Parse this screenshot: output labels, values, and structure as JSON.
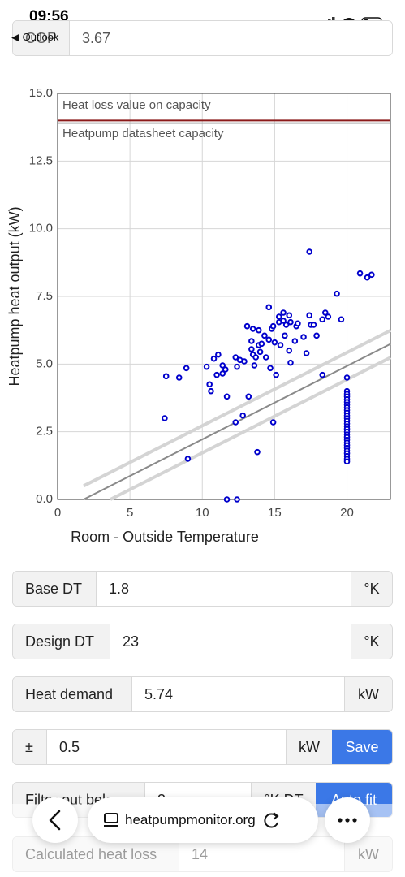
{
  "status_bar": {
    "time": "09:56",
    "back_app": "◀ Outlook"
  },
  "top_field": {
    "label": "COP",
    "value": 3.67
  },
  "chart_data": {
    "type": "scatter",
    "x_label": "Room - Outside Temperature",
    "y_label": "Heatpump heat output (kW)",
    "xlim": [
      0,
      23
    ],
    "ylim": [
      0,
      15
    ],
    "xticks": [
      0,
      5,
      10,
      15,
      20
    ],
    "yticks": [
      {
        "value": 0,
        "label": "0.0"
      },
      2.5,
      {
        "value": 5,
        "label": "5.0"
      },
      7.5,
      {
        "value": 10,
        "label": "10.0"
      },
      12.5,
      {
        "value": 15,
        "label": "15.0"
      }
    ],
    "grid": true,
    "color": "#0000cc",
    "x": [
      7.4,
      7.5,
      8.4,
      8.9,
      9.0,
      10.3,
      10.5,
      10.6,
      10.8,
      11.0,
      11.1,
      11.4,
      11.4,
      11.6,
      11.7,
      11.7,
      12.4,
      12.3,
      12.3,
      12.4,
      12.6,
      12.8,
      12.9,
      13.1,
      13.2,
      13.4,
      13.4,
      13.5,
      13.5,
      13.6,
      13.7,
      13.8,
      13.9,
      13.9,
      14.0,
      14.1,
      14.3,
      14.4,
      14.6,
      14.6,
      14.7,
      14.8,
      14.9,
      14.9,
      15.0,
      15.1,
      15.3,
      15.3,
      15.4,
      15.6,
      15.6,
      15.7,
      15.8,
      16.0,
      16.0,
      16.1,
      16.1,
      16.4,
      16.5,
      16.6,
      17.0,
      17.2,
      17.4,
      17.4,
      17.5,
      17.7,
      17.9,
      18.3,
      18.3,
      18.5,
      18.7,
      19.3,
      19.6,
      20.9,
      21.4,
      21.7,
      20,
      20,
      20,
      20,
      20,
      20,
      20,
      20,
      20,
      20,
      20,
      20,
      20,
      20,
      20,
      20,
      20,
      20,
      20,
      20,
      20,
      20,
      20,
      20,
      20,
      20,
      20,
      20
    ],
    "values": [
      3.0,
      4.55,
      4.5,
      4.85,
      1.5,
      4.9,
      4.25,
      4.0,
      5.2,
      4.6,
      5.35,
      4.95,
      4.65,
      4.8,
      3.8,
      0,
      0,
      2.85,
      5.25,
      4.9,
      5.15,
      3.1,
      5.1,
      6.4,
      3.8,
      5.55,
      5.85,
      6.3,
      5.35,
      4.95,
      5.25,
      1.75,
      6.25,
      5.7,
      5.45,
      5.75,
      6.05,
      5.25,
      7.1,
      5.9,
      4.85,
      6.3,
      6.4,
      2.85,
      5.8,
      4.6,
      6.75,
      6.55,
      5.7,
      6.6,
      6.9,
      6.05,
      6.45,
      6.8,
      5.5,
      5.05,
      6.55,
      5.85,
      6.4,
      6.5,
      6.0,
      5.4,
      9.15,
      6.8,
      6.45,
      6.45,
      6.05,
      6.65,
      4.6,
      6.9,
      6.75,
      7.6,
      6.65,
      8.35,
      8.2,
      8.3,
      4.5,
      4.0,
      3.9,
      3.8,
      3.7,
      3.6,
      3.5,
      3.4,
      3.3,
      3.2,
      3.1,
      3.0,
      2.9,
      2.8,
      2.7,
      2.6,
      2.5,
      2.4,
      2.3,
      2.2,
      2.1,
      2.0,
      1.9,
      1.8,
      1.7,
      1.6,
      1.5,
      1.4
    ],
    "lines": [
      {
        "x": [
          1.8,
          23
        ],
        "values": [
          0.5,
          6.24
        ],
        "color": "#d4d4d4",
        "width": 4
      },
      {
        "x": [
          1.8,
          23
        ],
        "values": [
          0,
          5.74
        ],
        "color": "#8a8a8a",
        "width": 2
      },
      {
        "x": [
          3.65,
          23
        ],
        "values": [
          0,
          5.24
        ],
        "color": "#d4d4d4",
        "width": 4
      }
    ],
    "reference_lines": [
      {
        "value": 14,
        "label": "Heat loss value on capacity",
        "color": "#8b1a1a",
        "label_value": 14.55
      },
      {
        "value": 13.9,
        "label": "Heatpump datasheet capacity",
        "color": "#b0b0b0",
        "label_value": 13.5
      }
    ]
  },
  "form": {
    "rows": [
      {
        "label": "Base DT",
        "value": 1.8,
        "unit": "°K"
      },
      {
        "label": "Design DT",
        "value": 23,
        "unit": "°K"
      },
      {
        "label": "Heat demand",
        "value": 5.74,
        "unit": "kW"
      },
      {
        "label": "±",
        "value": 0.5,
        "unit": "kW",
        "button": "Save"
      },
      {
        "label": "Filter out below",
        "value": 3,
        "unit": "°K DT",
        "button": "Auto fit"
      },
      {
        "label": "Calculated heat loss",
        "value": 14,
        "unit": "kW"
      }
    ]
  },
  "browser": {
    "url": "heatpumpmonitor.org"
  }
}
